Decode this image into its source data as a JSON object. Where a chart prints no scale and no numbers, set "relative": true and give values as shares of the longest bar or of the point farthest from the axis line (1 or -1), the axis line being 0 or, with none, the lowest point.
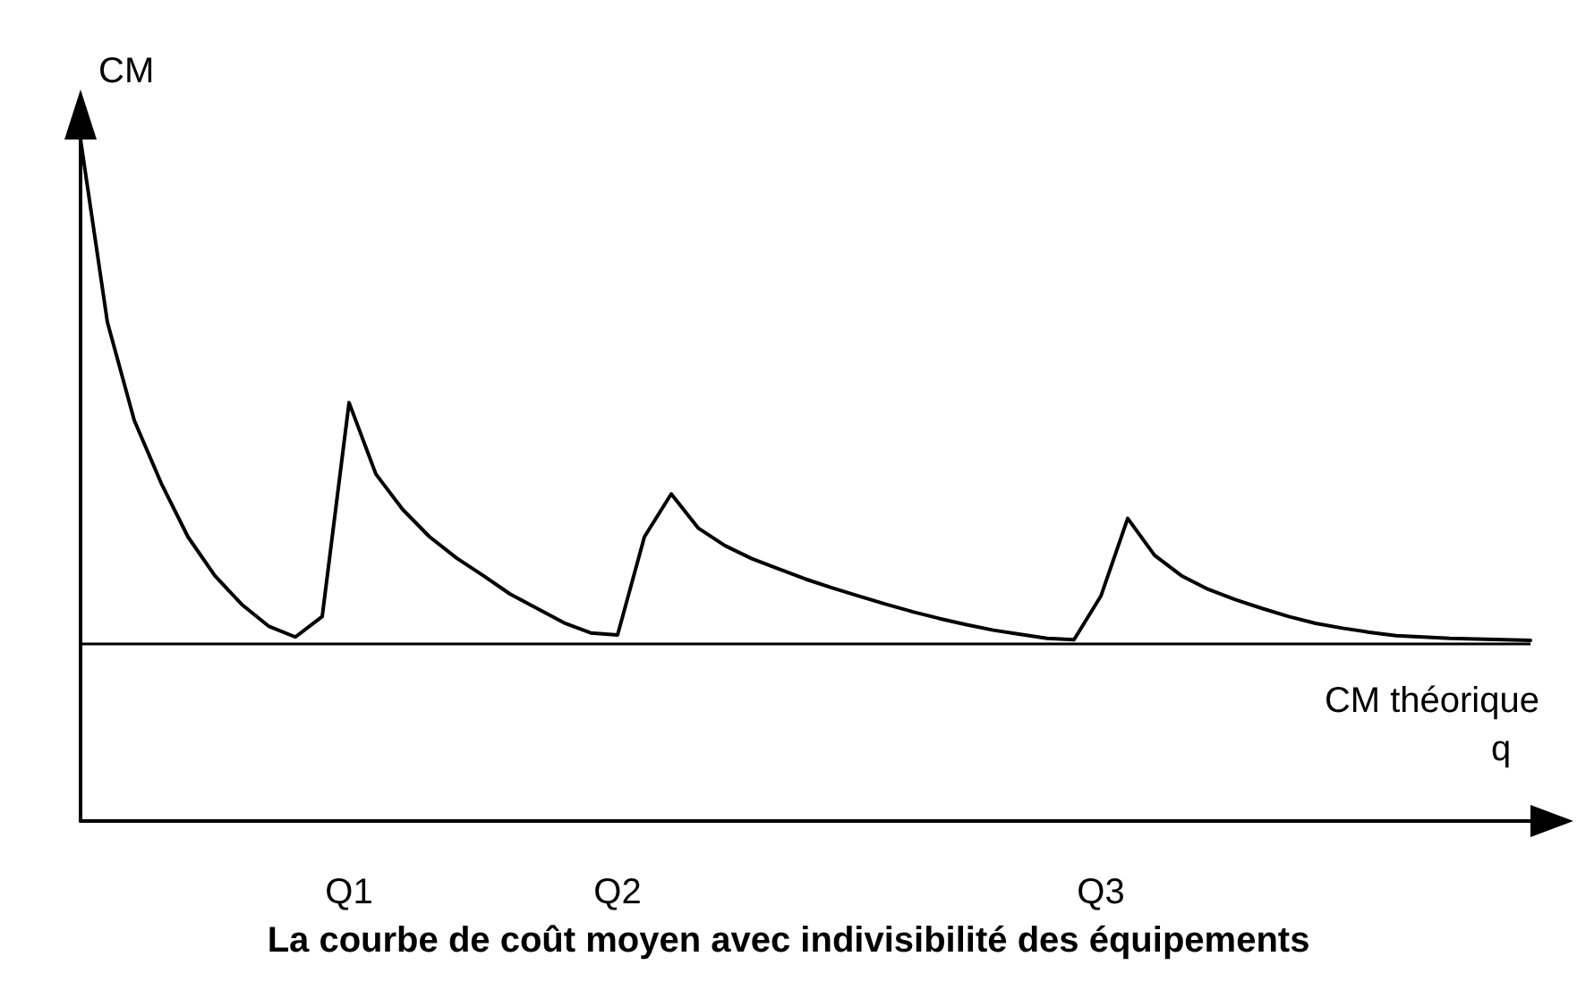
{
  "chart_data": {
    "type": "line",
    "title": "La courbe de coût moyen avec indivisibilité des équipements",
    "xlabel": "q",
    "ylabel": "CM",
    "relative": true,
    "marker": "none",
    "line_style": "solid",
    "categories": [
      null,
      null,
      null,
      null,
      null,
      null,
      null,
      null,
      null,
      null,
      "Q1",
      null,
      null,
      null,
      null,
      null,
      null,
      null,
      null,
      null,
      "Q2",
      null,
      null,
      null,
      null,
      null,
      null,
      null,
      null,
      null,
      null,
      null,
      null,
      null,
      null,
      null,
      null,
      null,
      "Q3",
      null,
      null,
      null,
      null,
      null,
      null,
      null,
      null,
      null,
      null,
      null,
      null,
      null,
      null,
      null,
      null
    ],
    "series": [
      {
        "color": "#000000",
        "values": [
          1.0,
          0.732,
          0.588,
          0.496,
          0.417,
          0.36,
          0.318,
          0.286,
          0.27,
          0.3,
          0.614,
          0.509,
          0.457,
          0.417,
          0.386,
          0.36,
          0.333,
          0.312,
          0.291,
          0.276,
          0.273,
          0.417,
          0.48,
          0.43,
          0.404,
          0.385,
          0.37,
          0.355,
          0.342,
          0.33,
          0.318,
          0.307,
          0.297,
          0.288,
          0.28,
          0.274,
          0.268,
          0.266,
          0.33,
          0.444,
          0.39,
          0.36,
          0.34,
          0.325,
          0.312,
          0.3,
          0.29,
          0.283,
          0.277,
          0.272,
          0.27,
          0.268,
          0.267,
          0.266,
          0.265
        ]
      }
    ],
    "ref_lines": [
      {
        "axis": "y",
        "value": 0.26,
        "label": "CM théorique",
        "color": "#000000"
      }
    ]
  }
}
